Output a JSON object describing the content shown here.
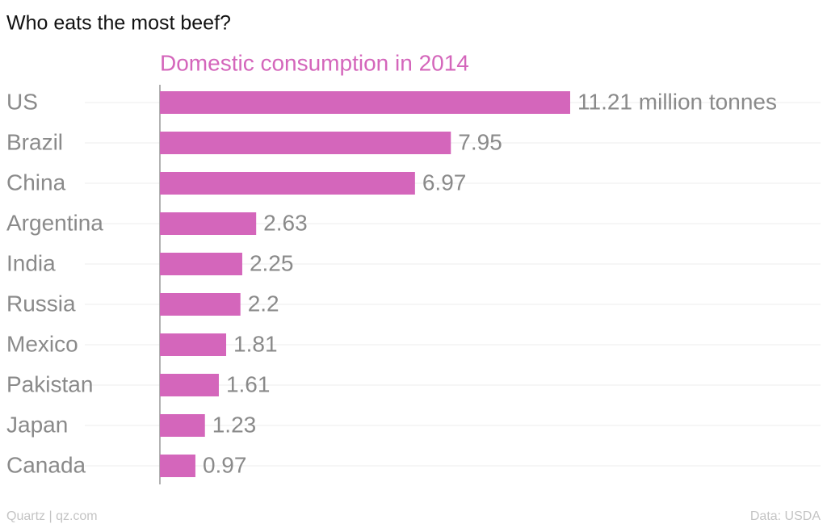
{
  "chart_data": {
    "type": "bar",
    "orientation": "horizontal",
    "title": "Who eats the most beef?",
    "subtitle": "Domestic consumption in 2014",
    "categories": [
      "US",
      "Brazil",
      "China",
      "Argentina",
      "India",
      "Russia",
      "Mexico",
      "Pakistan",
      "Japan",
      "Canada"
    ],
    "values": [
      11.21,
      7.95,
      6.97,
      2.63,
      2.25,
      2.2,
      1.81,
      1.61,
      1.23,
      0.97
    ],
    "value_labels": [
      "11.21 million tonnes",
      "7.95",
      "6.97",
      "2.63",
      "2.25",
      "2.2",
      "1.81",
      "1.61",
      "1.23",
      "0.97"
    ],
    "color": "#d466bb",
    "credit": "Quartz | qz.com",
    "source": "Data: USDA"
  }
}
